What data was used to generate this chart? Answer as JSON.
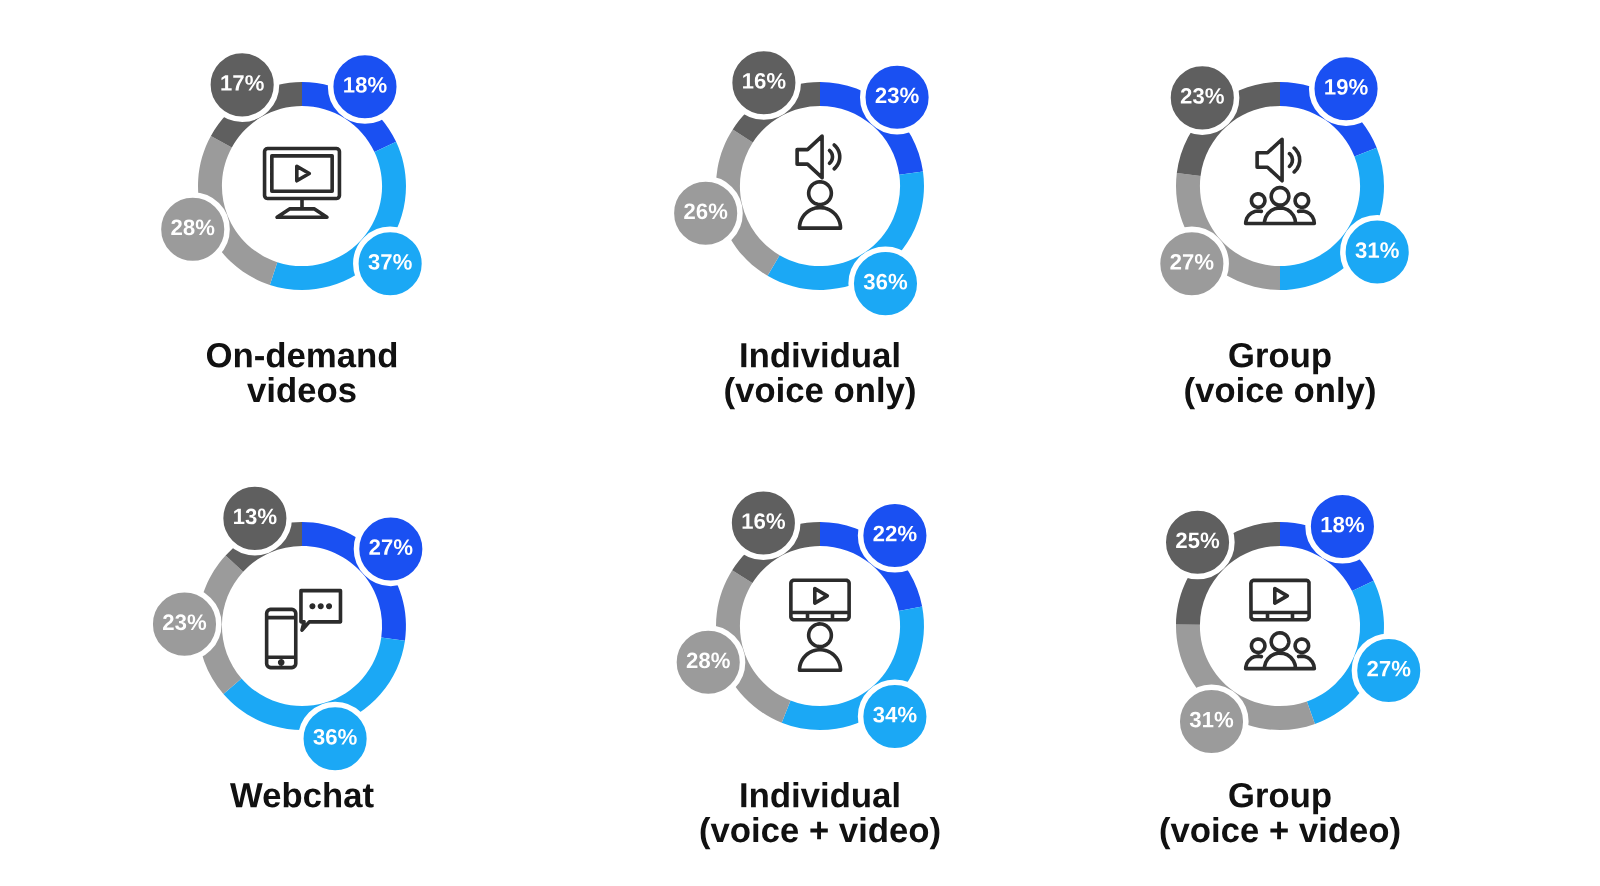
{
  "chart_data": [
    {
      "type": "donut",
      "title": "On-demand\nvideos",
      "categories": [
        null,
        null,
        null,
        null
      ],
      "values": [
        18,
        37,
        28,
        17
      ],
      "colors": [
        "#1a50f2",
        "#1ba8f5",
        "#9b9b9b",
        "#5f5f5f"
      ],
      "value_labels": [
        "18%",
        "37%",
        "28%",
        "17%"
      ]
    },
    {
      "type": "donut",
      "title": "Individual\n(voice only)",
      "categories": [
        null,
        null,
        null,
        null
      ],
      "values": [
        23,
        36,
        26,
        16
      ],
      "colors": [
        "#1a50f2",
        "#1ba8f5",
        "#9b9b9b",
        "#5f5f5f"
      ],
      "value_labels": [
        "23%",
        "36%",
        "26%",
        "16%"
      ]
    },
    {
      "type": "donut",
      "title": "Group\n(voice only)",
      "categories": [
        null,
        null,
        null,
        null
      ],
      "values": [
        19,
        31,
        27,
        23
      ],
      "colors": [
        "#1a50f2",
        "#1ba8f5",
        "#9b9b9b",
        "#5f5f5f"
      ],
      "value_labels": [
        "19%",
        "31%",
        "27%",
        "23%"
      ]
    },
    {
      "type": "donut",
      "title": "Webchat",
      "categories": [
        null,
        null,
        null,
        null
      ],
      "values": [
        27,
        36,
        23,
        13
      ],
      "colors": [
        "#1a50f2",
        "#1ba8f5",
        "#9b9b9b",
        "#5f5f5f"
      ],
      "value_labels": [
        "27%",
        "36%",
        "23%",
        "13%"
      ]
    },
    {
      "type": "donut",
      "title": "Individual\n(voice + video)",
      "categories": [
        null,
        null,
        null,
        null
      ],
      "values": [
        22,
        34,
        28,
        16
      ],
      "colors": [
        "#1a50f2",
        "#1ba8f5",
        "#9b9b9b",
        "#5f5f5f"
      ],
      "value_labels": [
        "22%",
        "34%",
        "28%",
        "16%"
      ]
    },
    {
      "type": "donut",
      "title": "Group\n(voice + video)",
      "categories": [
        null,
        null,
        null,
        null
      ],
      "values": [
        18,
        27,
        31,
        25
      ],
      "colors": [
        "#1a50f2",
        "#1ba8f5",
        "#9b9b9b",
        "#5f5f5f"
      ],
      "value_labels": [
        "18%",
        "27%",
        "31%",
        "25%"
      ]
    }
  ]
}
